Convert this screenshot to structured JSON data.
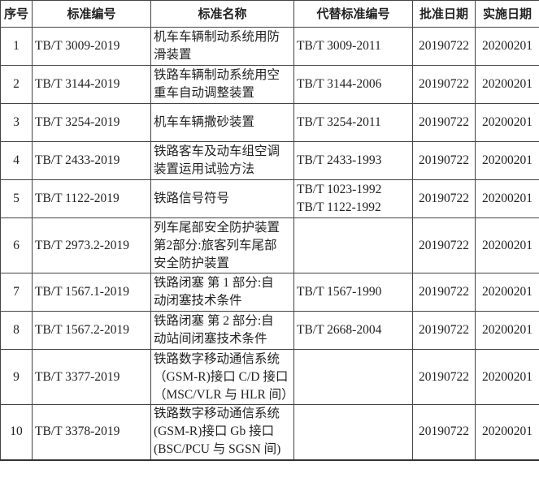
{
  "headers": [
    "序号",
    "标准编号",
    "标准名称",
    "代替标准编号",
    "批准日期",
    "实施日期"
  ],
  "rows": [
    {
      "no": "1",
      "code": "TB/T 3009-2019",
      "name": [
        "机车车辆制动系统用防",
        "滑装置"
      ],
      "replaces": [
        "TB/T 3009-2011"
      ],
      "approved": "20190722",
      "effective": "20200201"
    },
    {
      "no": "2",
      "code": "TB/T 3144-2019",
      "name": [
        "铁路车辆制动系统用空",
        "重车自动调整装置"
      ],
      "replaces": [
        "TB/T 3144-2006"
      ],
      "approved": "20190722",
      "effective": "20200201"
    },
    {
      "no": "3",
      "code": "TB/T 3254-2019",
      "name": [
        "机车车辆撒砂装置"
      ],
      "replaces": [
        "TB/T 3254-2011"
      ],
      "approved": "20190722",
      "effective": "20200201"
    },
    {
      "no": "4",
      "code": "TB/T 2433-2019",
      "name": [
        "铁路客车及动车组空调",
        "装置运用试验方法"
      ],
      "replaces": [
        "TB/T 2433-1993"
      ],
      "approved": "20190722",
      "effective": "20200201"
    },
    {
      "no": "5",
      "code": "TB/T 1122-2019",
      "name": [
        "铁路信号符号"
      ],
      "replaces": [
        "TB/T 1023-1992",
        "TB/T 1122-1992"
      ],
      "approved": "20190722",
      "effective": "20200201"
    },
    {
      "no": "6",
      "code": "TB/T 2973.2-2019",
      "name": [
        "列车尾部安全防护装置",
        "第2部分:旅客列车尾部",
        "安全防护装置"
      ],
      "replaces": [],
      "approved": "20190722",
      "effective": "20200201"
    },
    {
      "no": "7",
      "code": "TB/T 1567.1-2019",
      "name": [
        "铁路闭塞 第 1 部分:自",
        "动闭塞技术条件"
      ],
      "replaces": [
        "TB/T 1567-1990"
      ],
      "approved": "20190722",
      "effective": "20200201"
    },
    {
      "no": "8",
      "code": "TB/T 1567.2-2019",
      "name": [
        "铁路闭塞 第 2 部分:自",
        "动站间闭塞技术条件"
      ],
      "replaces": [
        "TB/T 2668-2004"
      ],
      "approved": "20190722",
      "effective": "20200201"
    },
    {
      "no": "9",
      "code": "TB/T 3377-2019",
      "name": [
        "铁路数字移动通信系统",
        "（GSM-R)接口 C/D 接口",
        "（MSC/VLR 与 HLR 间）"
      ],
      "replaces": [],
      "approved": "20190722",
      "effective": "20200201"
    },
    {
      "no": "10",
      "code": "TB/T 3378-2019",
      "name": [
        "铁路数字移动通信系统",
        "(GSM-R)接口  Gb  接口",
        "(BSC/PCU 与 SGSN 间)"
      ],
      "replaces": [],
      "approved": "20190722",
      "effective": "20200201"
    }
  ]
}
